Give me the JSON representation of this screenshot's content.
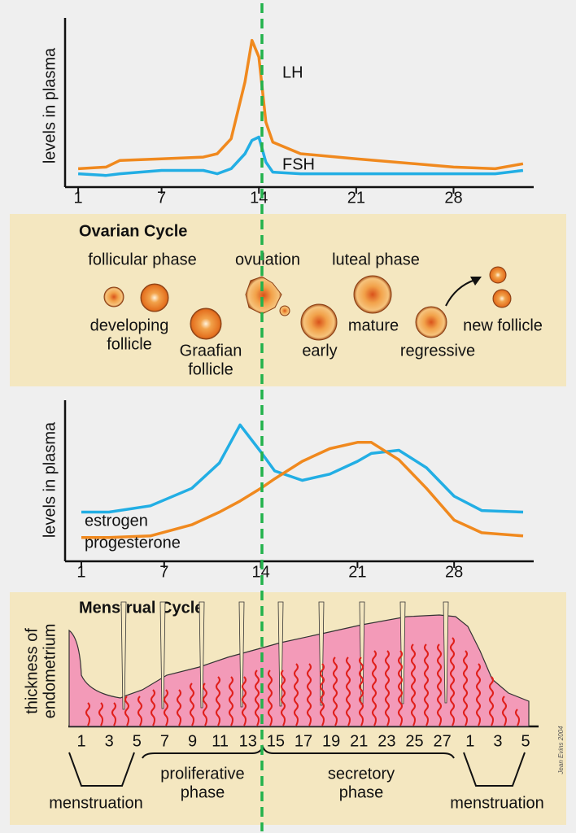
{
  "chart_data": [
    {
      "type": "line",
      "y_label": "levels in plasma",
      "xlim": [
        0,
        34
      ],
      "ylim": [
        0,
        100
      ],
      "xticks": [
        1,
        7,
        14,
        21,
        28
      ],
      "x": [
        1,
        3,
        4,
        7,
        10,
        11,
        12,
        13,
        13.5,
        14,
        14.5,
        15,
        17,
        21,
        28,
        31,
        33
      ],
      "series": [
        {
          "name": "LH",
          "color": "#f0891e",
          "values": [
            11,
            12,
            16,
            17,
            18,
            20,
            29,
            63,
            88,
            78,
            39,
            27,
            20,
            17,
            12,
            11,
            14
          ]
        },
        {
          "name": "FSH",
          "color": "#22aee4",
          "values": [
            8,
            7,
            8,
            10,
            10,
            8,
            11,
            20,
            28,
            30,
            15,
            9,
            8,
            8,
            8,
            8,
            10
          ]
        }
      ]
    },
    {
      "type": "line",
      "y_label": "levels in plasma",
      "xlim": [
        0,
        34
      ],
      "ylim": [
        0,
        100
      ],
      "xticks": [
        1,
        7,
        14,
        21,
        28
      ],
      "x": [
        1,
        3,
        6,
        9,
        11,
        12.5,
        14,
        15,
        17,
        19,
        21,
        22,
        24,
        26,
        28,
        30,
        33
      ],
      "series": [
        {
          "name": "estrogen",
          "color": "#22aee4",
          "values": [
            31,
            31,
            35,
            46,
            62,
            86,
            69,
            57,
            51,
            55,
            63,
            68,
            70,
            59,
            41,
            32,
            31
          ]
        },
        {
          "name": "progesterone",
          "color": "#f0891e",
          "values": [
            15,
            15,
            16,
            23,
            31,
            38,
            46,
            52,
            63,
            71,
            75,
            75,
            64,
            46,
            26,
            18,
            16
          ]
        }
      ]
    }
  ],
  "ovarian_cycle": {
    "title": "Ovarian Cycle",
    "phases": [
      "follicular phase",
      "ovulation",
      "luteal phase"
    ],
    "labels": [
      "developing",
      "follicle",
      "Graafian",
      "follicle",
      "early",
      "mature",
      "regressive",
      "new follicle"
    ]
  },
  "menstrual_cycle": {
    "title": "Menstrual Cycle",
    "y_label": [
      "thickness of",
      "endometrium"
    ],
    "day_labels": [
      "1",
      "3",
      "5",
      "7",
      "9",
      "11",
      "13",
      "15",
      "17",
      "19",
      "21",
      "23",
      "25",
      "27",
      "1",
      "3",
      "5"
    ],
    "phase_labels": [
      "menstruation",
      "proliferative",
      "phase",
      "secretory",
      "phase",
      "menstruation"
    ]
  },
  "signature": "Jean Evins 2004"
}
